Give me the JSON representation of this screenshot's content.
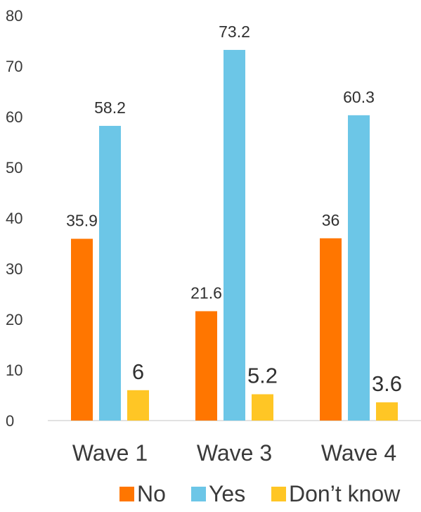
{
  "chart_data": {
    "type": "bar",
    "categories": [
      "Wave 1",
      "Wave 3",
      "Wave 4"
    ],
    "series": [
      {
        "name": "No",
        "values": [
          35.9,
          21.6,
          36
        ],
        "color": "#FF7600",
        "value_labels": [
          "35.9",
          "21.6",
          "36"
        ]
      },
      {
        "name": "Yes",
        "values": [
          58.2,
          73.2,
          60.3
        ],
        "color": "#6CC6E7",
        "value_labels": [
          "58.2",
          "73.2",
          "60.3"
        ]
      },
      {
        "name": "Don’t know",
        "values": [
          6,
          5.2,
          3.6
        ],
        "color": "#FFC625",
        "value_labels": [
          "6",
          "5.2",
          "3.6"
        ]
      }
    ],
    "ylim": [
      0,
      80
    ],
    "yticks": [
      "0",
      "10",
      "20",
      "30",
      "40",
      "50",
      "60",
      "70",
      "80"
    ],
    "grid": false,
    "legend_position": "bottom-right"
  }
}
